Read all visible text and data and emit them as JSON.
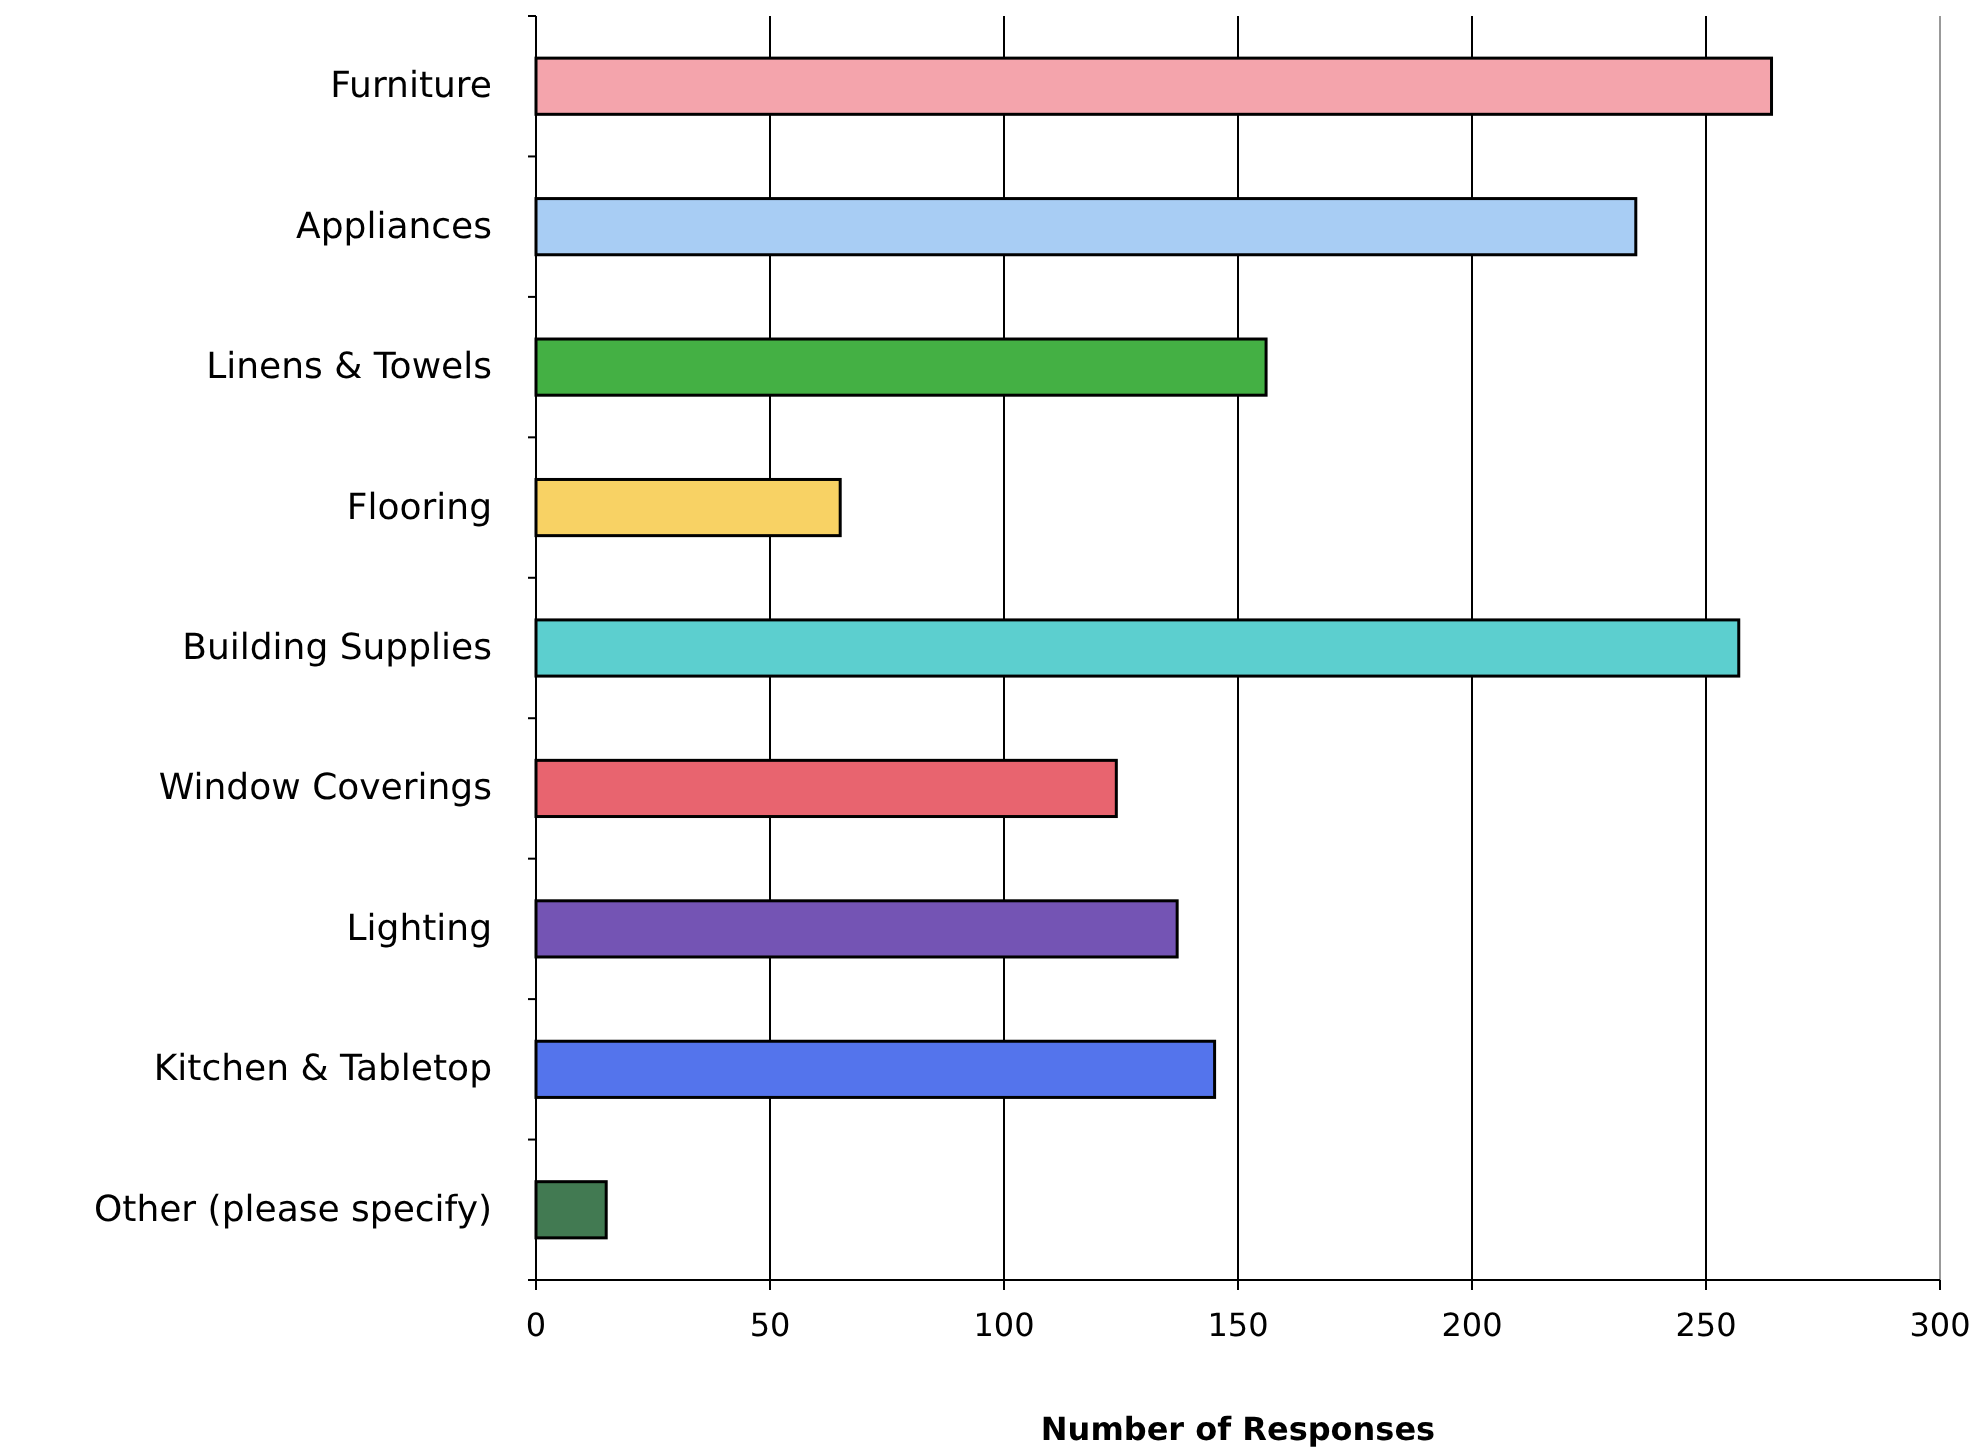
{
  "chart_data": {
    "type": "bar",
    "orientation": "horizontal",
    "xlabel": "Number of Responses",
    "categories": [
      "Furniture",
      "Appliances",
      "Linens & Towels",
      "Flooring",
      "Building Supplies",
      "Window Coverings",
      "Lighting",
      "Kitchen & Tabletop",
      "Other (please specify)"
    ],
    "values": [
      264,
      235,
      156,
      65,
      257,
      124,
      137,
      145,
      15
    ],
    "colors": [
      "#f4a4ac",
      "#a8cdf4",
      "#44b044",
      "#f8d264",
      "#5ccfcf",
      "#e8646f",
      "#7454b4",
      "#5474ec",
      "#427a52"
    ],
    "xlim": [
      0,
      300
    ],
    "xticks": [
      0,
      50,
      100,
      150,
      200,
      250,
      300
    ],
    "grid": "x"
  }
}
